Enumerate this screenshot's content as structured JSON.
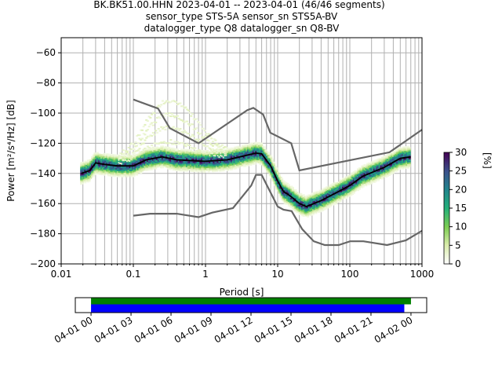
{
  "chart_data": {
    "type": "heatmap",
    "title_lines": [
      "BK.BK51.00.HHN   2023-04-01 -- 2023-04-01  (46/46 segments)",
      "sensor_type STS-5A sensor_sn STS5A-BV",
      "datalogger_type Q8 datalogger_sn Q8-BV"
    ],
    "xlabel": "Period [s]",
    "ylabel": "Power [m²/s⁴/Hz] [dB]",
    "xscale": "log",
    "xlim": [
      0.01,
      1000
    ],
    "ylim": [
      -200,
      -50
    ],
    "x_ticks": [
      0.01,
      0.1,
      1,
      10,
      100,
      1000
    ],
    "x_tick_labels": [
      "0.01",
      "0.1",
      "1",
      "10",
      "100",
      "1000"
    ],
    "y_ticks": [
      -200,
      -180,
      -160,
      -140,
      -120,
      -100,
      -80,
      -60
    ],
    "y_tick_labels": [
      "−200",
      "−180",
      "−160",
      "−140",
      "−120",
      "−100",
      "−80",
      "−60"
    ],
    "grid": true,
    "colorbar": {
      "label": "[%]",
      "range": [
        0,
        30
      ],
      "ticks": [
        "0",
        "5",
        "10",
        "15",
        "20",
        "25",
        "30"
      ]
    },
    "mean_curve": {
      "period": [
        0.019,
        0.025,
        0.03,
        0.04,
        0.06,
        0.1,
        0.15,
        0.25,
        0.4,
        1,
        2,
        3,
        5,
        6,
        8,
        10,
        12,
        15,
        20,
        25,
        40,
        70,
        100,
        150,
        300,
        500,
        700
      ],
      "db": [
        -140,
        -138,
        -133,
        -134,
        -135,
        -135,
        -131,
        -129,
        -131,
        -132,
        -131,
        -129,
        -126.5,
        -127,
        -135,
        -145,
        -152,
        -155,
        -160,
        -162,
        -158,
        -152,
        -148,
        -142,
        -136,
        -130,
        -129
      ]
    },
    "high_noise_model": {
      "period": [
        0.1,
        0.22,
        0.32,
        0.8,
        3.8,
        4.6,
        6.3,
        7.9,
        15.4,
        20,
        354,
        1000
      ],
      "db": [
        -91,
        -97,
        -110,
        -120,
        -98,
        -96.5,
        -101,
        -113,
        -120,
        -138,
        -126,
        -111
      ]
    },
    "low_noise_model": {
      "period": [
        0.1,
        0.17,
        0.4,
        0.8,
        1.24,
        2.4,
        4.3,
        5,
        6,
        10,
        12,
        15.6,
        21.9,
        31.6,
        45,
        70,
        101,
        154,
        328,
        600,
        1000
      ],
      "db": [
        -168,
        -166.7,
        -166.7,
        -169,
        -166,
        -163,
        -148,
        -141,
        -141,
        -162,
        -164,
        -165,
        -177,
        -185,
        -187.5,
        -187.5,
        -185,
        -185,
        -187.5,
        -184.4,
        -178
      ]
    },
    "pdf_spread_db": 4,
    "colors": {
      "noise_model": "#666666",
      "mean": "#000000",
      "data_coverage": "#008000",
      "psd_coverage": "#0000ff"
    },
    "time_axis": {
      "tick_labels": [
        "04-01 00",
        "04-01 03",
        "04-01 06",
        "04-01 09",
        "04-01 12",
        "04-01 15",
        "04-01 18",
        "04-01 21",
        "04-02 00"
      ],
      "tick_hours": [
        0,
        3,
        6,
        9,
        12,
        15,
        18,
        21,
        24
      ],
      "xlim_hours": [
        -1.18,
        25.18
      ],
      "data_coverage_hours": [
        0,
        24
      ],
      "psd_coverage_hours": [
        0,
        23.5
      ]
    }
  }
}
